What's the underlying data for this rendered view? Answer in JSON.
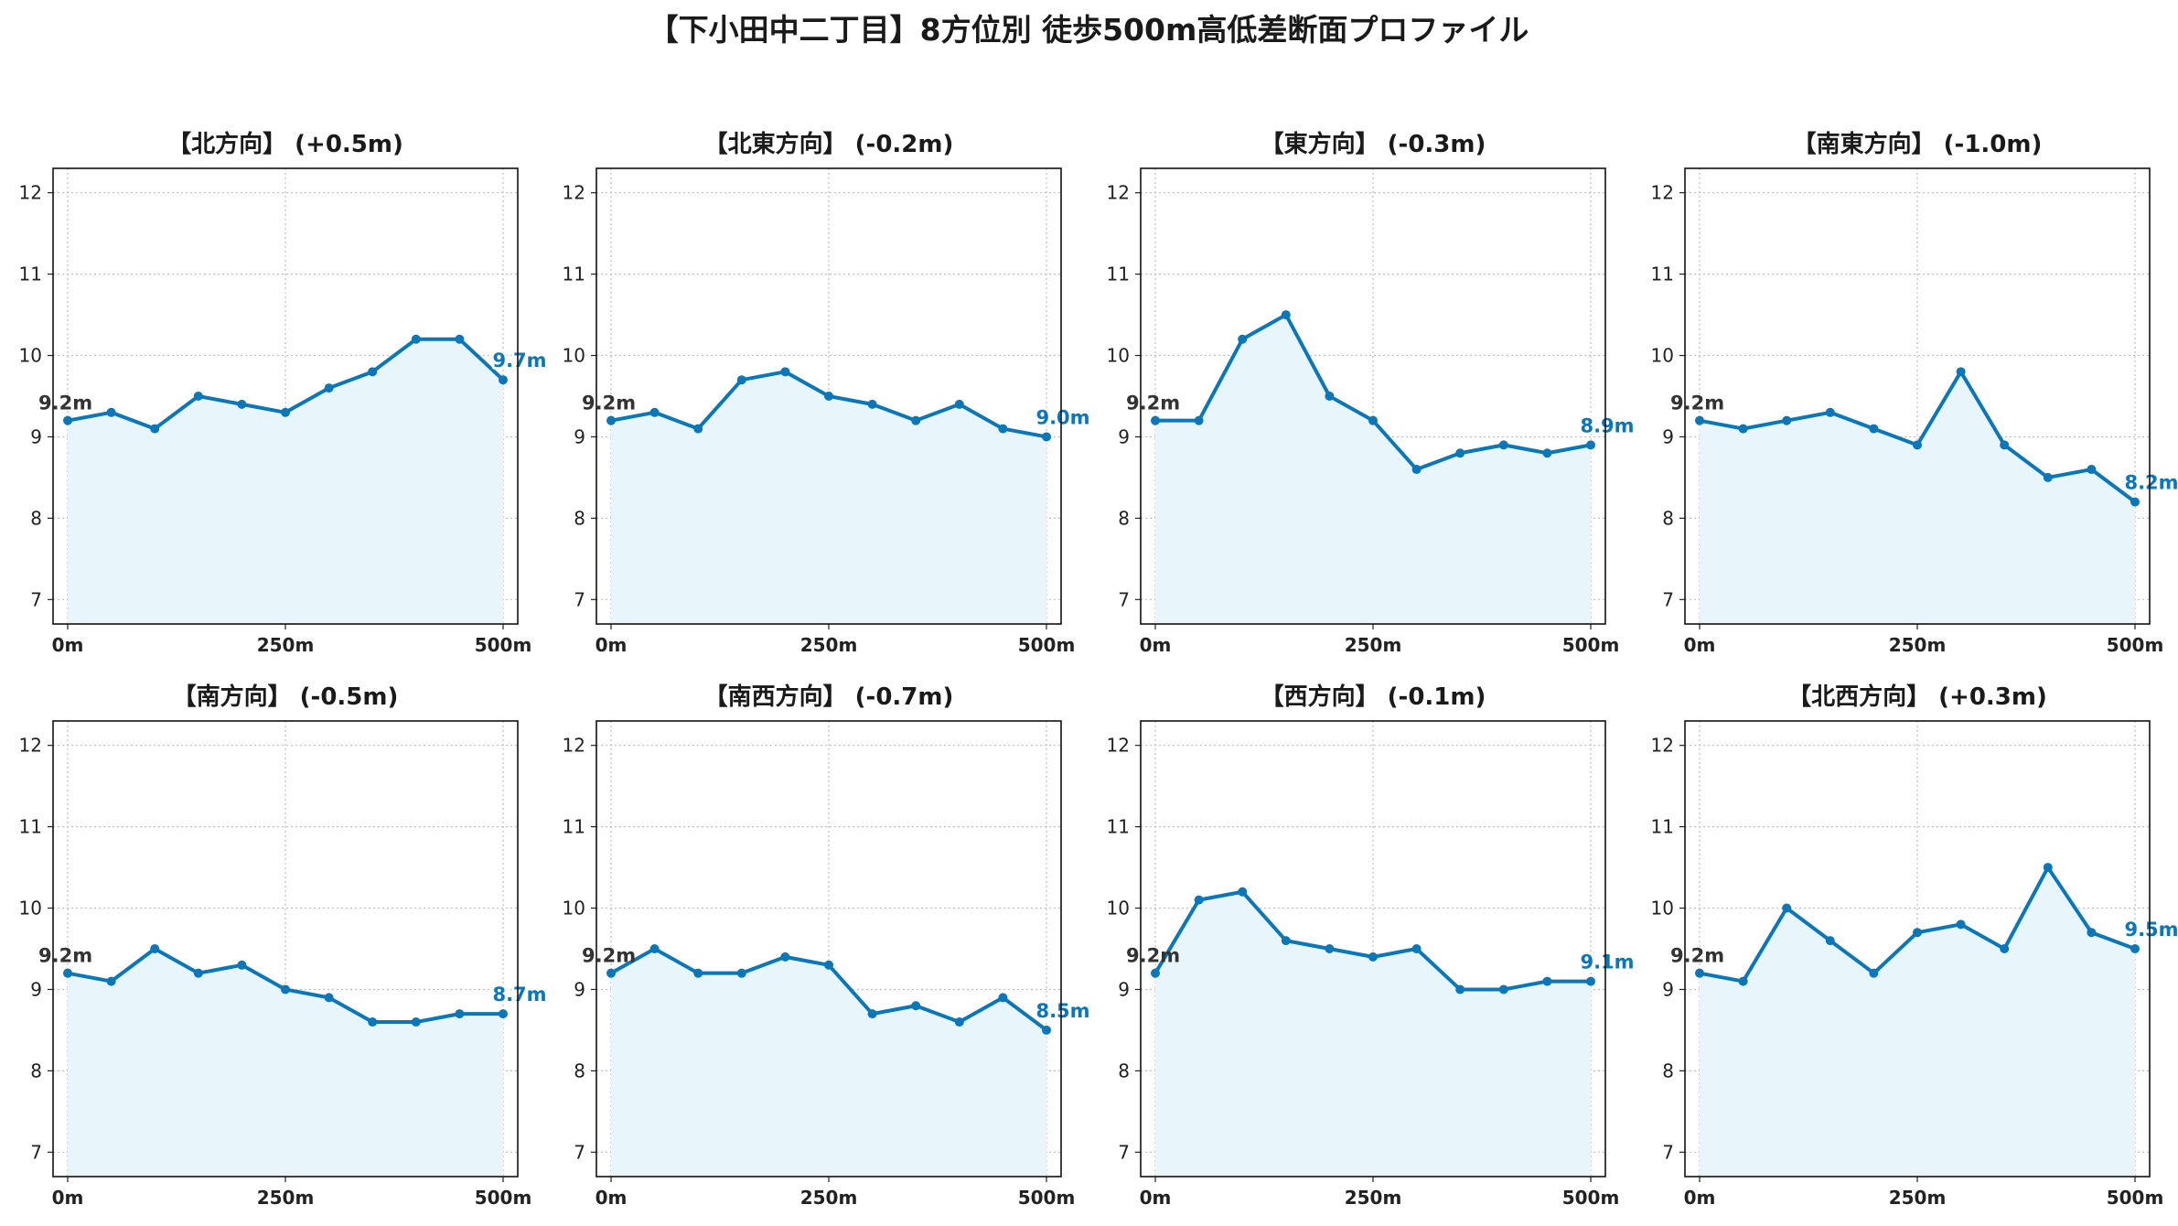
{
  "title": "【下小田中二丁目】8方位別 徒歩500m高低差断面プロファイル",
  "colors": {
    "line": "#0b77b8",
    "fill": "#e8f6fc",
    "grid": "#bfbfbf",
    "start_label": "#333333",
    "end_label": "#0b77b8"
  },
  "chart_data": [
    {
      "type": "line",
      "title": "【北方向】 (+0.5m)",
      "x": [
        0,
        50,
        100,
        150,
        200,
        250,
        300,
        350,
        400,
        450,
        500
      ],
      "values": [
        9.2,
        9.3,
        9.1,
        9.5,
        9.4,
        9.3,
        9.6,
        9.8,
        10.2,
        10.2,
        9.7
      ],
      "start_label": "9.2m",
      "end_label": "9.7m",
      "ylim": [
        6.7,
        12.3
      ],
      "yticks": [
        "7",
        "8",
        "9",
        "10",
        "11",
        "12"
      ],
      "xticks": [
        "0m",
        "250m",
        "500m"
      ],
      "grid": true
    },
    {
      "type": "line",
      "title": "【北東方向】 (-0.2m)",
      "x": [
        0,
        50,
        100,
        150,
        200,
        250,
        300,
        350,
        400,
        450,
        500
      ],
      "values": [
        9.2,
        9.3,
        9.1,
        9.7,
        9.8,
        9.5,
        9.4,
        9.2,
        9.4,
        9.1,
        9.0
      ],
      "start_label": "9.2m",
      "end_label": "9.0m",
      "ylim": [
        6.7,
        12.3
      ],
      "yticks": [
        "7",
        "8",
        "9",
        "10",
        "11",
        "12"
      ],
      "xticks": [
        "0m",
        "250m",
        "500m"
      ],
      "grid": true
    },
    {
      "type": "line",
      "title": "【東方向】 (-0.3m)",
      "x": [
        0,
        50,
        100,
        150,
        200,
        250,
        300,
        350,
        400,
        450,
        500
      ],
      "values": [
        9.2,
        9.2,
        10.2,
        10.5,
        9.5,
        9.2,
        8.6,
        8.8,
        8.9,
        8.8,
        8.9
      ],
      "start_label": "9.2m",
      "end_label": "8.9m",
      "ylim": [
        6.7,
        12.3
      ],
      "yticks": [
        "7",
        "8",
        "9",
        "10",
        "11",
        "12"
      ],
      "xticks": [
        "0m",
        "250m",
        "500m"
      ],
      "grid": true
    },
    {
      "type": "line",
      "title": "【南東方向】 (-1.0m)",
      "x": [
        0,
        50,
        100,
        150,
        200,
        250,
        300,
        350,
        400,
        450,
        500
      ],
      "values": [
        9.2,
        9.1,
        9.2,
        9.3,
        9.1,
        8.9,
        9.8,
        8.9,
        8.5,
        8.6,
        8.2
      ],
      "start_label": "9.2m",
      "end_label": "8.2m",
      "ylim": [
        6.7,
        12.3
      ],
      "yticks": [
        "7",
        "8",
        "9",
        "10",
        "11",
        "12"
      ],
      "xticks": [
        "0m",
        "250m",
        "500m"
      ],
      "grid": true
    },
    {
      "type": "line",
      "title": "【南方向】 (-0.5m)",
      "x": [
        0,
        50,
        100,
        150,
        200,
        250,
        300,
        350,
        400,
        450,
        500
      ],
      "values": [
        9.2,
        9.1,
        9.5,
        9.2,
        9.3,
        9.0,
        8.9,
        8.6,
        8.6,
        8.7,
        8.7
      ],
      "start_label": "9.2m",
      "end_label": "8.7m",
      "ylim": [
        6.7,
        12.3
      ],
      "yticks": [
        "7",
        "8",
        "9",
        "10",
        "11",
        "12"
      ],
      "xticks": [
        "0m",
        "250m",
        "500m"
      ],
      "grid": true
    },
    {
      "type": "line",
      "title": "【南西方向】 (-0.7m)",
      "x": [
        0,
        50,
        100,
        150,
        200,
        250,
        300,
        350,
        400,
        450,
        500
      ],
      "values": [
        9.2,
        9.5,
        9.2,
        9.2,
        9.4,
        9.3,
        8.7,
        8.8,
        8.6,
        8.9,
        8.5
      ],
      "start_label": "9.2m",
      "end_label": "8.5m",
      "ylim": [
        6.7,
        12.3
      ],
      "yticks": [
        "7",
        "8",
        "9",
        "10",
        "11",
        "12"
      ],
      "xticks": [
        "0m",
        "250m",
        "500m"
      ],
      "grid": true
    },
    {
      "type": "line",
      "title": "【西方向】 (-0.1m)",
      "x": [
        0,
        50,
        100,
        150,
        200,
        250,
        300,
        350,
        400,
        450,
        500
      ],
      "values": [
        9.2,
        10.1,
        10.2,
        9.6,
        9.5,
        9.4,
        9.5,
        9.0,
        9.0,
        9.1,
        9.1
      ],
      "start_label": "9.2m",
      "end_label": "9.1m",
      "ylim": [
        6.7,
        12.3
      ],
      "yticks": [
        "7",
        "8",
        "9",
        "10",
        "11",
        "12"
      ],
      "xticks": [
        "0m",
        "250m",
        "500m"
      ],
      "grid": true
    },
    {
      "type": "line",
      "title": "【北西方向】 (+0.3m)",
      "x": [
        0,
        50,
        100,
        150,
        200,
        250,
        300,
        350,
        400,
        450,
        500
      ],
      "values": [
        9.2,
        9.1,
        10.0,
        9.6,
        9.2,
        9.7,
        9.8,
        9.5,
        10.5,
        9.7,
        9.5
      ],
      "start_label": "9.2m",
      "end_label": "9.5m",
      "ylim": [
        6.7,
        12.3
      ],
      "yticks": [
        "7",
        "8",
        "9",
        "10",
        "11",
        "12"
      ],
      "xticks": [
        "0m",
        "250m",
        "500m"
      ],
      "grid": true
    }
  ]
}
